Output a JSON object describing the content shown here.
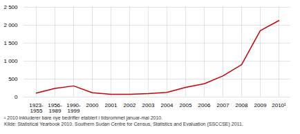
{
  "chart_data": {
    "type": "line",
    "categories": [
      "1923-\n1955",
      "1956-\n1989",
      "1990-\n1999",
      "2000",
      "2001",
      "2002",
      "2003",
      "2004",
      "2005",
      "2006",
      "2007",
      "2008",
      "2009",
      "2010¹"
    ],
    "values": [
      110,
      240,
      310,
      120,
      75,
      75,
      95,
      130,
      270,
      370,
      590,
      900,
      1850,
      2130
    ],
    "color": "#cc0000",
    "ylim": [
      0,
      2500
    ],
    "yticks": [
      0,
      500,
      {
        "value": 1000,
        "label": "1 000"
      },
      {
        "value": 1500,
        "label": "1 500"
      },
      {
        "value": 2000,
        "label": "2 000"
      },
      {
        "value": 2500,
        "label": "2 500"
      }
    ],
    "grid": true,
    "annotations": [
      "¹ 2010 inkluderer bare nye bedrifter etablert i tidsrommet januar-mai 2010.",
      "Kilde: Statistical Yearbook 2010. Southern Sudan Centre for Census, Statistics and Evaluation (SSCCSE) 2011."
    ]
  }
}
